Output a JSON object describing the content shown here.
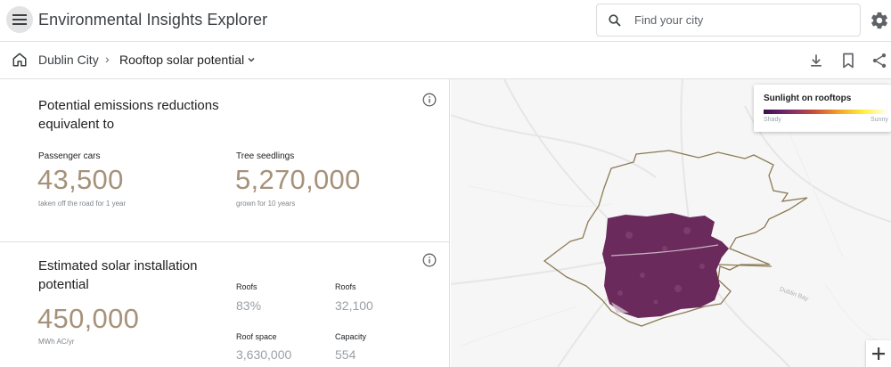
{
  "header": {
    "title": "Environmental Insights Explorer",
    "search_placeholder": "Find your city",
    "menu_icon": "hamburger-menu-icon",
    "settings_icon": "gear-icon"
  },
  "breadcrumb": {
    "city": "Dublin City",
    "separator": "›",
    "current": "Rooftop solar potential"
  },
  "emissions": {
    "title": "Potential emissions reductions equivalent to",
    "cars_label": "Passenger cars",
    "cars_value": "43,500",
    "cars_note": "taken off the road for 1 year",
    "trees_label": "Tree seedlings",
    "trees_value": "5,270,000",
    "trees_note": "grown for 10 years"
  },
  "solar": {
    "title": "Estimated solar installation potential",
    "value": "450,000",
    "unit": "MWh AC/yr",
    "roofs_pct_label": "Roofs",
    "roofs_pct_value": "83%",
    "roofs_count_label": "Roofs",
    "roofs_count_value": "32,100",
    "roof_space_label": "Roof space",
    "roof_space_value": "3,630,000",
    "capacity_label": "Capacity",
    "capacity_value": "554"
  },
  "legend": {
    "title": "Sunlight on rooftops",
    "min_label": "Shady",
    "max_label": "Sunny"
  },
  "map": {
    "bay_label": "Dublin Bay"
  },
  "colors": {
    "accent_value": "#a6927a",
    "heat": "#6b2a5c",
    "boundary": "#8c7a54"
  }
}
